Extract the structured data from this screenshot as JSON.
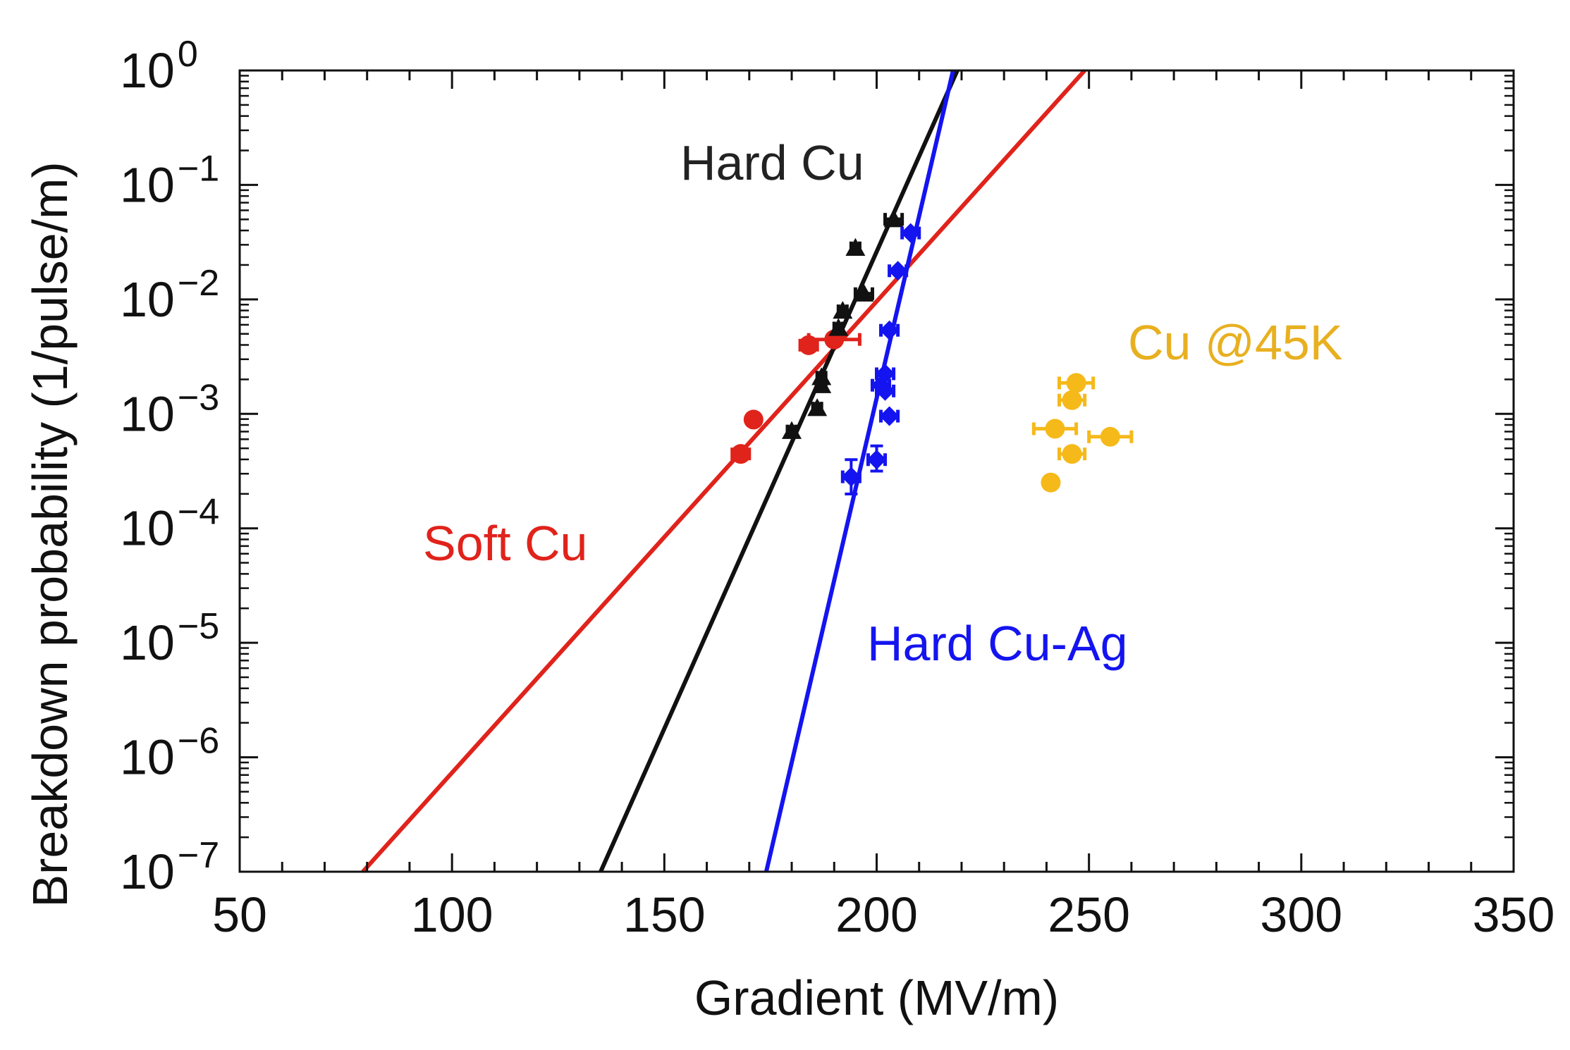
{
  "chart_data": {
    "type": "scatter",
    "title": "",
    "xlabel": "Gradient (MV/m)",
    "ylabel": "Breakdown probability (1/pulse/m)",
    "xlim": [
      50,
      350
    ],
    "ylim_exponent": [
      -7,
      0
    ],
    "yscale": "log",
    "x_ticks": [
      50,
      100,
      150,
      200,
      250,
      300,
      350
    ],
    "x_tick_labels": [
      "50",
      "100",
      "150",
      "200",
      "250",
      "300",
      "350"
    ],
    "y_ticks": [
      {
        "base": "10",
        "exp": "0",
        "value_exp": 0
      },
      {
        "base": "10",
        "exp": "−1",
        "value_exp": -1
      },
      {
        "base": "10",
        "exp": "−2",
        "value_exp": -2
      },
      {
        "base": "10",
        "exp": "−3",
        "value_exp": -3
      },
      {
        "base": "10",
        "exp": "−4",
        "value_exp": -4
      },
      {
        "base": "10",
        "exp": "−5",
        "value_exp": -5
      },
      {
        "base": "10",
        "exp": "−6",
        "value_exp": -6
      },
      {
        "base": "10",
        "exp": "−7",
        "value_exp": -7
      }
    ],
    "grid": false,
    "series": [
      {
        "name": "Soft Cu",
        "color": "#e0231b",
        "marker": "circle",
        "fit_line": {
          "x": [
            79,
            249
          ],
          "log10y": [
            -7,
            0
          ]
        },
        "points": [
          {
            "x": 168,
            "log10y": -3.35,
            "xerr": 2
          },
          {
            "x": 171,
            "log10y": -3.05,
            "xerr": 1
          },
          {
            "x": 184,
            "log10y": -2.4,
            "xerr": 2
          },
          {
            "x": 190,
            "log10y": -2.35,
            "xerr": 6
          }
        ]
      },
      {
        "name": "Hard Cu",
        "color": "#111111",
        "marker": "triangle",
        "fit_line": {
          "x": [
            135,
            219
          ],
          "log10y": [
            -7,
            0
          ]
        },
        "points": [
          {
            "x": 180,
            "log10y": -3.15,
            "xerr": 1
          },
          {
            "x": 186,
            "log10y": -2.95,
            "xerr": 1
          },
          {
            "x": 187,
            "log10y": -2.75,
            "xerr": 1
          },
          {
            "x": 187,
            "log10y": -2.68,
            "xerr": 1
          },
          {
            "x": 191,
            "log10y": -2.25,
            "xerr": 1
          },
          {
            "x": 192,
            "log10y": -2.1,
            "xerr": 1
          },
          {
            "x": 195,
            "log10y": -1.55,
            "xerr": 1
          },
          {
            "x": 197,
            "log10y": -1.95,
            "xerr": 2
          },
          {
            "x": 204,
            "log10y": -1.3,
            "xerr": 2
          }
        ]
      },
      {
        "name": "Hard Cu-Ag",
        "color": "#1414f0",
        "marker": "diamond",
        "fit_line": {
          "x": [
            174,
            218
          ],
          "log10y": [
            -7,
            0
          ]
        },
        "points": [
          {
            "x": 194,
            "log10y": -3.55,
            "xerr": 2,
            "yerr_low": 0.15,
            "yerr_high": 0.15
          },
          {
            "x": 200,
            "log10y": -3.4,
            "xerr": 2,
            "yerr_low": 0.1,
            "yerr_high": 0.12
          },
          {
            "x": 203,
            "log10y": -3.02,
            "xerr": 2
          },
          {
            "x": 201,
            "log10y": -2.75,
            "xerr": 2
          },
          {
            "x": 202,
            "log10y": -2.8,
            "xerr": 2
          },
          {
            "x": 202,
            "log10y": -2.65,
            "xerr": 2
          },
          {
            "x": 203,
            "log10y": -2.27,
            "xerr": 2
          },
          {
            "x": 205,
            "log10y": -1.75,
            "xerr": 2
          },
          {
            "x": 208,
            "log10y": -1.42,
            "xerr": 2
          }
        ]
      },
      {
        "name": "Cu @45K",
        "color": "#f5b91a",
        "marker": "circle",
        "fit_line": null,
        "points": [
          {
            "x": 241,
            "log10y": -3.6,
            "xerr": 1
          },
          {
            "x": 242,
            "log10y": -3.13,
            "xerr": 5
          },
          {
            "x": 246,
            "log10y": -3.35,
            "xerr": 3
          },
          {
            "x": 246,
            "log10y": -2.88,
            "xerr": 3
          },
          {
            "x": 247,
            "log10y": -2.73,
            "xerr": 4
          },
          {
            "x": 255,
            "log10y": -3.2,
            "xerr": 5
          }
        ]
      }
    ],
    "annotations": [
      {
        "text": "Hard Cu",
        "color": "#222222",
        "series": "Hard Cu"
      },
      {
        "text": "Soft Cu",
        "color": "#e0231b",
        "series": "Soft Cu"
      },
      {
        "text": "Hard Cu-Ag",
        "color": "#1414f0",
        "series": "Hard Cu-Ag"
      },
      {
        "text": "Cu @45K",
        "color": "#e8b020",
        "series": "Cu @45K"
      }
    ]
  }
}
